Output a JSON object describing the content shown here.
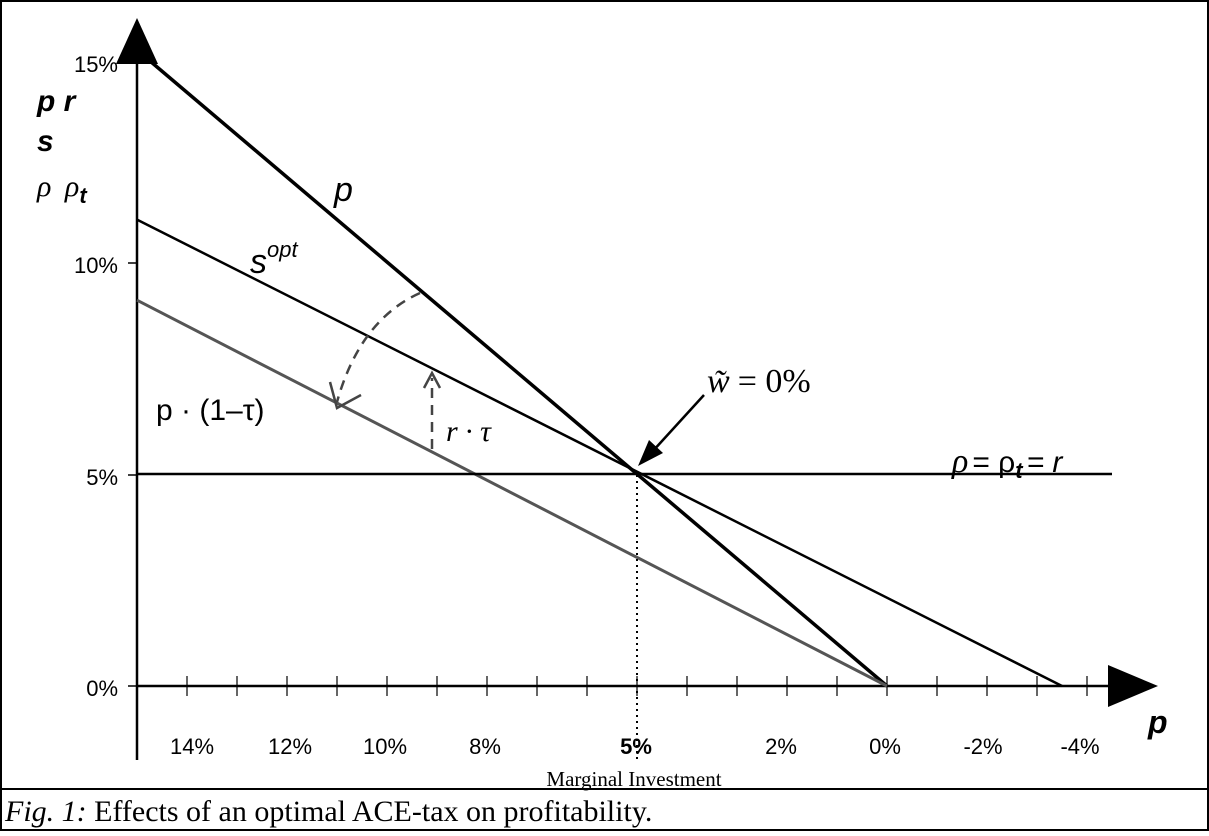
{
  "chart_data": {
    "type": "line",
    "x_axis": {
      "symbol": "p",
      "tick_labels": [
        "14%",
        "12%",
        "10%",
        "8%",
        "5%",
        "2%",
        "0%",
        "-2%",
        "-4%"
      ],
      "caption": "Marginal Investment"
    },
    "y_axis": {
      "symbols_line1": "p r",
      "symbols_line2": "s",
      "symbols_line3_a": "ρ",
      "symbols_line3_b": "ρ",
      "symbols_line3_sub": "t",
      "tick_labels": [
        "15%",
        "10%",
        "5%",
        "0%"
      ],
      "ylim": [
        0,
        15
      ]
    },
    "xlim": [
      15,
      -4.5
    ],
    "series": [
      {
        "name": "p",
        "label": "p",
        "x": [
          15,
          0
        ],
        "y": [
          15,
          0
        ],
        "color": "#000000"
      },
      {
        "name": "s^opt",
        "label_base": "s",
        "label_sup": "opt",
        "x": [
          15,
          -3.5
        ],
        "y": [
          11,
          0
        ],
        "color": "#000000"
      },
      {
        "name": "p · (1–τ)",
        "label": "p · (1–τ)",
        "x": [
          15,
          0
        ],
        "y": [
          9.1,
          0
        ],
        "color": "#555555"
      },
      {
        "name": "ρ = ρt = r",
        "label_a": "ρ",
        "label_b": "= ρ",
        "label_sub": "t",
        "label_c": "= r",
        "x": [
          15,
          -4.5
        ],
        "y": [
          5,
          5
        ],
        "color": "#000000"
      }
    ],
    "annotations": {
      "r_tau": "r · τ",
      "w_tilde": "w̃",
      "w_eq": "= 0%"
    }
  },
  "caption": {
    "fig_label": "Fig. 1:",
    "text": " Effects of an optimal ACE-tax on profitability."
  }
}
